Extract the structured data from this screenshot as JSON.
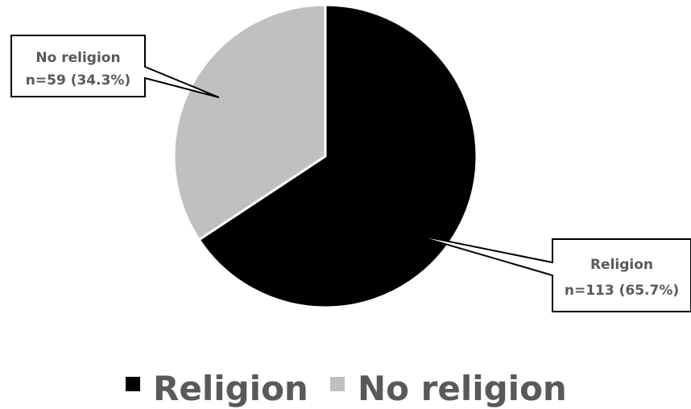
{
  "chart_data": {
    "type": "pie",
    "series": [
      {
        "name": "Religion",
        "n": 113,
        "percent": 65.7,
        "label_line1": "Religion",
        "label_line2": "n=113 (65.7%)",
        "color": "#000000"
      },
      {
        "name": "No religion",
        "n": 59,
        "percent": 34.3,
        "label_line1": "No religion",
        "label_line2": "n=59 (34.3%)",
        "color": "#c0c0c0"
      }
    ],
    "legend": {
      "placement": "bottom",
      "entries": [
        "Religion",
        "No religion"
      ]
    }
  }
}
